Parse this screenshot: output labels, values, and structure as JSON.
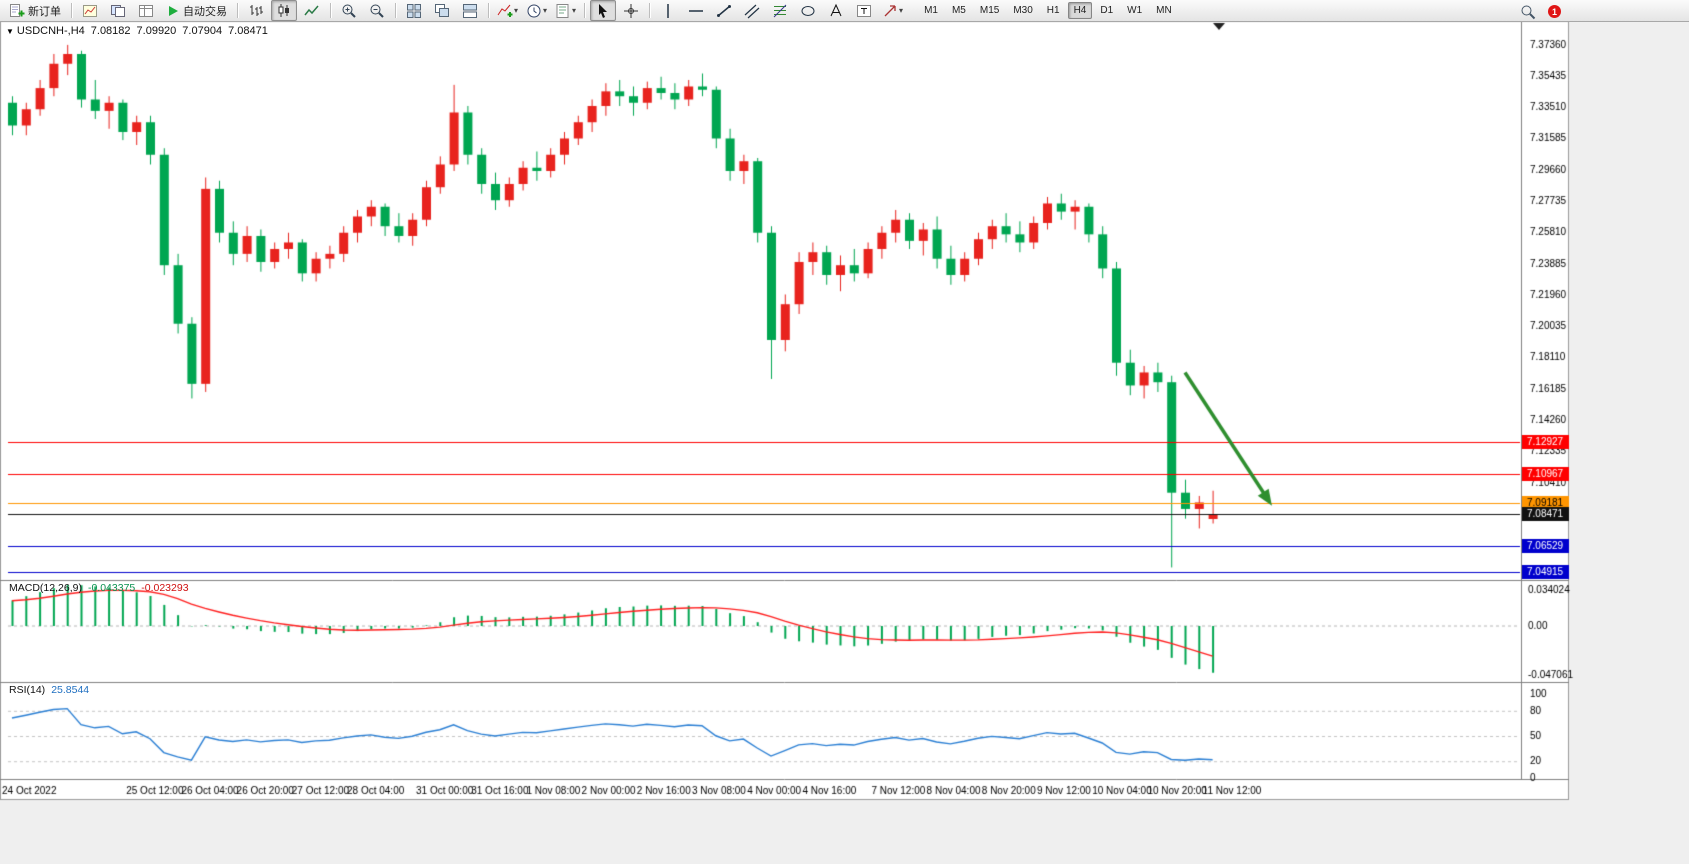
{
  "toolbar": {
    "new_order_label": "新订单",
    "autotrading_label": "自动交易",
    "timeframes": [
      "M1",
      "M5",
      "M15",
      "M30",
      "H1",
      "H4",
      "D1",
      "W1",
      "MN"
    ],
    "active_timeframe": "H4",
    "notification_count": "1"
  },
  "chart": {
    "collapse_marker": "▼",
    "title": "USDCNH-,H4",
    "ohlc": {
      "open": "7.08182",
      "high": "7.09920",
      "low": "7.07904",
      "close": "7.08471"
    }
  },
  "indicators": {
    "macd": {
      "label": "MACD(12,26,9)",
      "value_main": "-0.043375",
      "value_signal": "-0.023293",
      "axis_labels": [
        "0.034024",
        "0.00",
        "-0.047061"
      ]
    },
    "rsi": {
      "label": "RSI(14)",
      "value": "25.8544",
      "axis_labels": [
        "100",
        "80",
        "50",
        "20",
        "0"
      ],
      "levels": [
        80,
        50,
        20
      ]
    }
  },
  "chart_data": {
    "type": "candlestick",
    "symbol": "USDCNH-",
    "timeframe": "H4",
    "price_axis_labels": [
      "7.37360",
      "7.35435",
      "7.33510",
      "7.31585",
      "7.29660",
      "7.27735",
      "7.25810",
      "7.23885",
      "7.21960",
      "7.20035",
      "7.18110",
      "7.16185",
      "7.14260",
      "7.12335",
      "7.10410",
      "7.08485",
      "7.06560",
      "7.04635"
    ],
    "time_labels": [
      {
        "label": "24 Oct 2022",
        "bar": 0
      },
      {
        "label": "25 Oct 12:00",
        "bar": 9
      },
      {
        "label": "26 Oct 04:00",
        "bar": 13
      },
      {
        "label": "26 Oct 20:00",
        "bar": 17
      },
      {
        "label": "27 Oct 12:00",
        "bar": 21
      },
      {
        "label": "28 Oct 04:00",
        "bar": 25
      },
      {
        "label": "31 Oct 00:00",
        "bar": 30
      },
      {
        "label": "31 Oct 16:00",
        "bar": 34
      },
      {
        "label": "1 Nov 08:00",
        "bar": 38
      },
      {
        "label": "2 Nov 00:00",
        "bar": 42
      },
      {
        "label": "2 Nov 16:00",
        "bar": 46
      },
      {
        "label": "3 Nov 08:00",
        "bar": 50
      },
      {
        "label": "4 Nov 00:00",
        "bar": 54
      },
      {
        "label": "4 Nov 16:00",
        "bar": 58
      },
      {
        "label": "7 Nov 12:00",
        "bar": 63
      },
      {
        "label": "8 Nov 04:00",
        "bar": 67
      },
      {
        "label": "8 Nov 20:00",
        "bar": 71
      },
      {
        "label": "9 Nov 12:00",
        "bar": 75
      },
      {
        "label": "10 Nov 04:00",
        "bar": 79
      },
      {
        "label": "10 Nov 20:00",
        "bar": 83
      },
      {
        "label": "11 Nov 12:00",
        "bar": 87
      }
    ],
    "candles": [
      [
        7.338,
        7.342,
        7.318,
        7.324
      ],
      [
        7.324,
        7.338,
        7.318,
        7.334
      ],
      [
        7.334,
        7.352,
        7.33,
        7.347
      ],
      [
        7.347,
        7.368,
        7.342,
        7.362
      ],
      [
        7.362,
        7.3736,
        7.355,
        7.368
      ],
      [
        7.368,
        7.37,
        7.335,
        7.34
      ],
      [
        7.34,
        7.352,
        7.328,
        7.333
      ],
      [
        7.333,
        7.342,
        7.322,
        7.338
      ],
      [
        7.338,
        7.34,
        7.315,
        7.32
      ],
      [
        7.32,
        7.33,
        7.312,
        7.326
      ],
      [
        7.326,
        7.33,
        7.3,
        7.306
      ],
      [
        7.306,
        7.31,
        7.232,
        7.238
      ],
      [
        7.238,
        7.245,
        7.196,
        7.202
      ],
      [
        7.202,
        7.206,
        7.156,
        7.165
      ],
      [
        7.165,
        7.292,
        7.16,
        7.285
      ],
      [
        7.285,
        7.29,
        7.252,
        7.258
      ],
      [
        7.258,
        7.265,
        7.238,
        7.245
      ],
      [
        7.245,
        7.262,
        7.24,
        7.256
      ],
      [
        7.256,
        7.26,
        7.234,
        7.24
      ],
      [
        7.24,
        7.252,
        7.236,
        7.248
      ],
      [
        7.248,
        7.258,
        7.242,
        7.252
      ],
      [
        7.252,
        7.254,
        7.228,
        7.233
      ],
      [
        7.233,
        7.246,
        7.228,
        7.242
      ],
      [
        7.242,
        7.25,
        7.236,
        7.245
      ],
      [
        7.245,
        7.262,
        7.24,
        7.258
      ],
      [
        7.258,
        7.272,
        7.252,
        7.268
      ],
      [
        7.268,
        7.278,
        7.262,
        7.274
      ],
      [
        7.274,
        7.276,
        7.256,
        7.262
      ],
      [
        7.262,
        7.27,
        7.252,
        7.256
      ],
      [
        7.256,
        7.27,
        7.25,
        7.266
      ],
      [
        7.266,
        7.29,
        7.262,
        7.286
      ],
      [
        7.286,
        7.305,
        7.282,
        7.3
      ],
      [
        7.3,
        7.349,
        7.296,
        7.332
      ],
      [
        7.332,
        7.336,
        7.3,
        7.306
      ],
      [
        7.306,
        7.31,
        7.282,
        7.288
      ],
      [
        7.288,
        7.295,
        7.272,
        7.278
      ],
      [
        7.278,
        7.292,
        7.274,
        7.288
      ],
      [
        7.288,
        7.302,
        7.284,
        7.298
      ],
      [
        7.298,
        7.308,
        7.29,
        7.296
      ],
      [
        7.296,
        7.31,
        7.292,
        7.306
      ],
      [
        7.306,
        7.32,
        7.3,
        7.316
      ],
      [
        7.316,
        7.33,
        7.312,
        7.326
      ],
      [
        7.326,
        7.34,
        7.32,
        7.336
      ],
      [
        7.336,
        7.35,
        7.33,
        7.345
      ],
      [
        7.345,
        7.352,
        7.336,
        7.342
      ],
      [
        7.342,
        7.348,
        7.33,
        7.338
      ],
      [
        7.338,
        7.351,
        7.334,
        7.347
      ],
      [
        7.347,
        7.354,
        7.34,
        7.344
      ],
      [
        7.344,
        7.35,
        7.334,
        7.34
      ],
      [
        7.34,
        7.352,
        7.336,
        7.348
      ],
      [
        7.348,
        7.356,
        7.342,
        7.346
      ],
      [
        7.346,
        7.348,
        7.31,
        7.316
      ],
      [
        7.316,
        7.322,
        7.29,
        7.296
      ],
      [
        7.296,
        7.306,
        7.288,
        7.302
      ],
      [
        7.302,
        7.304,
        7.252,
        7.258
      ],
      [
        7.258,
        7.262,
        7.168,
        7.192
      ],
      [
        7.192,
        7.22,
        7.185,
        7.214
      ],
      [
        7.214,
        7.246,
        7.208,
        7.24
      ],
      [
        7.24,
        7.252,
        7.232,
        7.246
      ],
      [
        7.246,
        7.25,
        7.226,
        7.232
      ],
      [
        7.232,
        7.244,
        7.222,
        7.238
      ],
      [
        7.238,
        7.248,
        7.228,
        7.233
      ],
      [
        7.233,
        7.252,
        7.23,
        7.248
      ],
      [
        7.248,
        7.262,
        7.242,
        7.258
      ],
      [
        7.258,
        7.272,
        7.252,
        7.266
      ],
      [
        7.266,
        7.27,
        7.248,
        7.253
      ],
      [
        7.253,
        7.264,
        7.244,
        7.26
      ],
      [
        7.26,
        7.268,
        7.236,
        7.242
      ],
      [
        7.242,
        7.25,
        7.226,
        7.232
      ],
      [
        7.232,
        7.246,
        7.228,
        7.242
      ],
      [
        7.242,
        7.258,
        7.238,
        7.254
      ],
      [
        7.254,
        7.266,
        7.248,
        7.262
      ],
      [
        7.262,
        7.27,
        7.252,
        7.257
      ],
      [
        7.257,
        7.265,
        7.246,
        7.252
      ],
      [
        7.252,
        7.268,
        7.248,
        7.264
      ],
      [
        7.264,
        7.28,
        7.26,
        7.276
      ],
      [
        7.276,
        7.282,
        7.266,
        7.271
      ],
      [
        7.271,
        7.278,
        7.26,
        7.274
      ],
      [
        7.274,
        7.276,
        7.252,
        7.257
      ],
      [
        7.257,
        7.262,
        7.23,
        7.236
      ],
      [
        7.236,
        7.24,
        7.17,
        7.178
      ],
      [
        7.178,
        7.186,
        7.158,
        7.164
      ],
      [
        7.164,
        7.176,
        7.156,
        7.172
      ],
      [
        7.172,
        7.178,
        7.16,
        7.166
      ],
      [
        7.166,
        7.17,
        7.052,
        7.098
      ],
      [
        7.098,
        7.106,
        7.082,
        7.088
      ],
      [
        7.088,
        7.096,
        7.076,
        7.092
      ],
      [
        7.08182,
        7.0992,
        7.07904,
        7.08471
      ]
    ],
    "hlines": [
      {
        "price": "7.12927",
        "color": "#ff0000",
        "text": "#ffffff"
      },
      {
        "price": "7.10967",
        "color": "#ff0000",
        "text": "#ffffff"
      },
      {
        "price": "7.09181",
        "color": "#ff9500",
        "text": "#000000"
      },
      {
        "price": "7.08471",
        "color": "#111111",
        "text": "#ffffff"
      },
      {
        "price": "7.06529",
        "color": "#0000cd",
        "text": "#ffffff"
      },
      {
        "price": "7.04915",
        "color": "#0000cd",
        "text": "#ffffff"
      }
    ],
    "trend_arrow": {
      "from_bar": 85,
      "from_price": 7.172,
      "to_bar": 91.3,
      "to_price": 7.09,
      "color": "#2f8f2f"
    },
    "colors": {
      "bull": "#e8231e",
      "bear": "#00a651",
      "macd_hist": "#00a651",
      "macd_signal": "#ff1e1e",
      "rsi_line": "#2a7fd4",
      "grid": "#c4c4c4"
    }
  }
}
